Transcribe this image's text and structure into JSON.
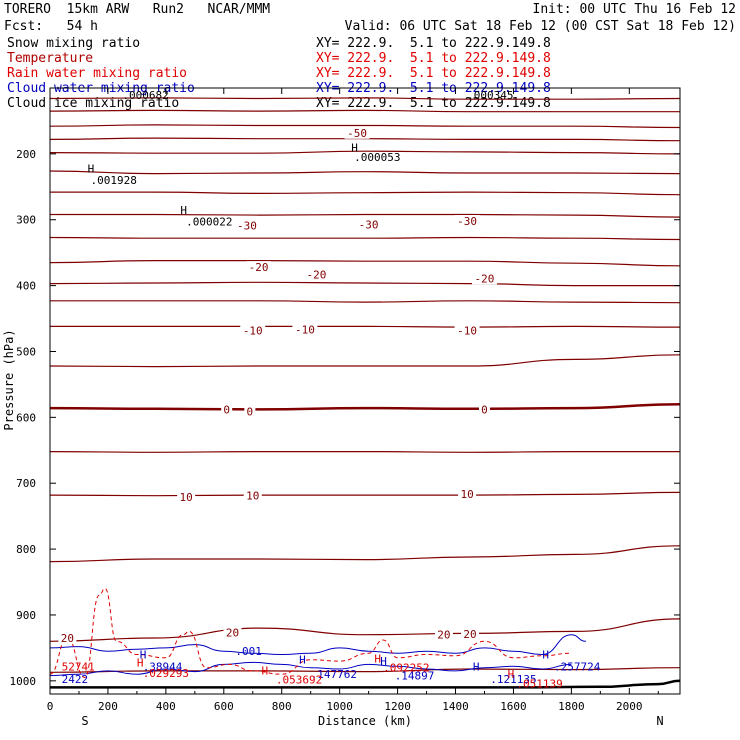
{
  "header": {
    "model": "TORERO  15km ARW   Run2   NCAR/MMM",
    "init": "Init: 00 UTC Thu 16 Feb 12",
    "fcst": "Fcst:   54 h",
    "valid": "Valid: 06 UTC Sat 18 Feb 12 (00 CST Sat 18 Feb 12)"
  },
  "legend": [
    {
      "name": "Snow mixing ratio",
      "color": "#000000",
      "xs": "XY= 222.9.  5.1 to 222.9.149.8"
    },
    {
      "name": "Temperature",
      "color": "#b00000",
      "xs": "XY= 222.9.  5.1 to 222.9.149.8"
    },
    {
      "name": "Rain water mixing ratio",
      "color": "#e00000",
      "xs": "XY= 222.9.  5.1 to 222.9.149.8"
    },
    {
      "name": "Cloud water mixing ratio",
      "color": "#0000c0",
      "xs": "XY= 222.9.  5.1 to 222.9.149.8"
    },
    {
      "name": "Cloud ice mixing ratio",
      "color": "#000000",
      "xs": "XY= 222.9.  5.1 to 222.9.149.8"
    }
  ],
  "chart_data": {
    "type": "cross-section",
    "xlabel": "Distance (km)",
    "ylabel": "Pressure (hPa)",
    "xlim": [
      0,
      2175
    ],
    "ylim": [
      1020,
      100
    ],
    "x_ticks": [
      0,
      200,
      400,
      600,
      800,
      1000,
      1200,
      1400,
      1600,
      1800,
      2000
    ],
    "y_ticks": [
      200,
      300,
      400,
      500,
      600,
      700,
      800,
      900,
      1000
    ],
    "endpoints": {
      "left": "S",
      "right": "N"
    },
    "temperature_isotherms": [
      {
        "p": [
          116,
          115,
          116,
          115,
          117,
          117,
          116
        ],
        "bold": false
      },
      {
        "p": [
          135,
          134,
          135,
          134,
          136,
          136,
          136
        ],
        "bold": false
      },
      {
        "p": [
          158,
          156,
          157,
          157,
          158,
          158,
          160
        ],
        "bold": false
      },
      {
        "p": [
          178,
          176,
          177,
          177,
          178,
          178,
          180
        ],
        "bold": false
      },
      {
        "p": [
          198,
          199,
          199,
          196,
          197,
          198,
          200
        ],
        "bold": false
      },
      {
        "p": [
          226,
          230,
          229,
          227,
          229,
          229,
          230
        ],
        "bold": false
      },
      {
        "p": [
          258,
          258,
          260,
          259,
          258,
          259,
          262
        ],
        "bold": false
      },
      {
        "p": [
          292,
          292,
          293,
          292,
          292,
          293,
          296
        ],
        "bold": false
      },
      {
        "p": [
          327,
          328,
          328,
          328,
          327,
          328,
          330
        ],
        "bold": false
      },
      {
        "p": [
          365,
          362,
          362,
          363,
          363,
          366,
          370
        ],
        "bold": false
      },
      {
        "p": [
          397,
          396,
          395,
          396,
          397,
          400,
          400
        ],
        "bold": false
      },
      {
        "p": [
          423,
          423,
          423,
          425,
          423,
          425,
          426
        ],
        "bold": false
      },
      {
        "p": [
          462,
          462,
          462,
          462,
          463,
          462,
          463
        ],
        "bold": false
      },
      {
        "p": [
          522,
          523,
          522,
          522,
          522,
          512,
          505
        ],
        "bold": false
      },
      {
        "p": [
          586,
          587,
          588,
          586,
          587,
          586,
          580
        ],
        "bold": true
      },
      {
        "p": [
          652,
          653,
          652,
          652,
          653,
          652,
          652
        ],
        "bold": false
      },
      {
        "p": [
          718,
          719,
          718,
          718,
          718,
          717,
          714
        ],
        "bold": false
      },
      {
        "p": [
          819,
          815,
          815,
          816,
          812,
          808,
          795
        ],
        "bold": false
      },
      {
        "p": [
          940,
          935,
          920,
          930,
          928,
          925,
          906
        ],
        "bold": false
      },
      {
        "p": [
          987,
          985,
          985,
          986,
          982,
          983,
          980
        ],
        "bold": false
      }
    ],
    "ground": {
      "x": [
        0,
        1600,
        1900,
        2100,
        2175
      ],
      "p": [
        1010,
        1010,
        1009,
        1005,
        1000
      ]
    },
    "temperature_labels": [
      {
        "text": "-50",
        "x": 1060,
        "p": 168
      },
      {
        "text": "-30",
        "x": 680,
        "p": 309
      },
      {
        "text": "-30",
        "x": 1100,
        "p": 307
      },
      {
        "text": "-30",
        "x": 1440,
        "p": 302
      },
      {
        "text": "-20",
        "x": 720,
        "p": 372
      },
      {
        "text": "-20",
        "x": 920,
        "p": 383
      },
      {
        "text": "-20",
        "x": 1500,
        "p": 389
      },
      {
        "text": "-10",
        "x": 700,
        "p": 468
      },
      {
        "text": "-10",
        "x": 880,
        "p": 467
      },
      {
        "text": "-10",
        "x": 1440,
        "p": 468
      },
      {
        "text": "0",
        "x": 610,
        "p": 588
      },
      {
        "text": "0",
        "x": 690,
        "p": 591
      },
      {
        "text": "0",
        "x": 1500,
        "p": 588
      },
      {
        "text": "10",
        "x": 470,
        "p": 721
      },
      {
        "text": "10",
        "x": 700,
        "p": 719
      },
      {
        "text": "10",
        "x": 1440,
        "p": 716
      },
      {
        "text": "20",
        "x": 60,
        "p": 935
      },
      {
        "text": "20",
        "x": 630,
        "p": 927
      },
      {
        "text": "20",
        "x": 1360,
        "p": 930
      },
      {
        "text": "20",
        "x": 1450,
        "p": 929
      }
    ],
    "extrema_labels": [
      {
        "text": "H",
        "x": 1040,
        "p": 190,
        "color": "#000000"
      },
      {
        "text": ".000053",
        "x": 1050,
        "p": 205,
        "color": "#000000"
      },
      {
        "text": "H",
        "x": 130,
        "p": 222,
        "color": "#000000"
      },
      {
        "text": ".001928",
        "x": 140,
        "p": 240,
        "color": "#000000"
      },
      {
        "text": "H",
        "x": 450,
        "p": 285,
        "color": "#000000"
      },
      {
        "text": ".000022",
        "x": 470,
        "p": 303,
        "color": "#000000"
      },
      {
        "text": ".000682",
        "x": 250,
        "p": 111,
        "color": "#000000"
      },
      {
        "text": ".000345",
        "x": 1440,
        "p": 111,
        "color": "#000000"
      },
      {
        "text": ".001",
        "x": 640,
        "p": 955,
        "color": "#0000c0"
      },
      {
        "text": "H",
        "x": 310,
        "p": 960,
        "color": "#0000c0"
      },
      {
        "text": "H",
        "x": 860,
        "p": 968,
        "color": "#0000c0"
      },
      {
        "text": "H",
        "x": 1140,
        "p": 970,
        "color": "#0000c0"
      },
      {
        "text": "H",
        "x": 1460,
        "p": 978,
        "color": "#0000c0"
      },
      {
        "text": "H",
        "x": 1700,
        "p": 960,
        "color": "#0000c0"
      },
      {
        "text": ".38944",
        "x": 320,
        "p": 978,
        "color": "#0000c0"
      },
      {
        "text": ".147762",
        "x": 900,
        "p": 990,
        "color": "#0000c0"
      },
      {
        "text": ".14897",
        "x": 1190,
        "p": 992,
        "color": "#0000c0"
      },
      {
        "text": ".121135",
        "x": 1520,
        "p": 997,
        "color": "#0000c0"
      },
      {
        "text": ".257724",
        "x": 1740,
        "p": 978,
        "color": "#0000c0"
      },
      {
        "text": "2422",
        "x": 40,
        "p": 997,
        "color": "#0000c0"
      },
      {
        "text": "52741",
        "x": 40,
        "p": 978,
        "color": "#e00000"
      },
      {
        "text": "H",
        "x": 300,
        "p": 972,
        "color": "#e00000"
      },
      {
        "text": ".029293",
        "x": 320,
        "p": 988,
        "color": "#e00000"
      },
      {
        "text": "H",
        "x": 730,
        "p": 984,
        "color": "#e00000"
      },
      {
        "text": ".053692",
        "x": 780,
        "p": 998,
        "color": "#e00000"
      },
      {
        "text": "H",
        "x": 1120,
        "p": 966,
        "color": "#e00000"
      },
      {
        "text": ".092252",
        "x": 1150,
        "p": 980,
        "color": "#e00000"
      },
      {
        "text": "H",
        "x": 1580,
        "p": 990,
        "color": "#e00000"
      },
      {
        "text": ".051139",
        "x": 1610,
        "p": 1004,
        "color": "#e00000"
      }
    ],
    "cloud_water_contours": [
      {
        "x": [
          0,
          100,
          200,
          300,
          400,
          500,
          600,
          700,
          800,
          900,
          1000,
          1100,
          1200,
          1300,
          1400,
          1500,
          1600,
          1700,
          1800,
          1850
        ],
        "p": [
          950,
          948,
          955,
          952,
          950,
          945,
          955,
          958,
          960,
          958,
          950,
          955,
          958,
          955,
          958,
          950,
          955,
          960,
          930,
          940
        ]
      },
      {
        "x": [
          0,
          100,
          200,
          300,
          400,
          500,
          600,
          700,
          800,
          900,
          1000,
          1100,
          1200,
          1300,
          1400,
          1500,
          1600,
          1700,
          1800
        ],
        "p": [
          992,
          990,
          985,
          990,
          982,
          986,
          975,
          972,
          975,
          980,
          982,
          975,
          978,
          982,
          985,
          980,
          978,
          982,
          975
        ]
      }
    ],
    "rain_water_contours": [
      {
        "x": [
          0,
          60,
          120,
          170,
          190,
          230,
          300,
          400,
          460,
          480,
          540,
          620,
          700,
          800,
          900,
          1000,
          1100,
          1150,
          1200,
          1300,
          1400,
          1500,
          1600,
          1700,
          1800
        ],
        "p": [
          990,
          935,
          995,
          870,
          860,
          940,
          960,
          965,
          930,
          925,
          980,
          975,
          985,
          990,
          968,
          970,
          958,
          938,
          965,
          960,
          962,
          940,
          965,
          962,
          958
        ]
      }
    ]
  }
}
